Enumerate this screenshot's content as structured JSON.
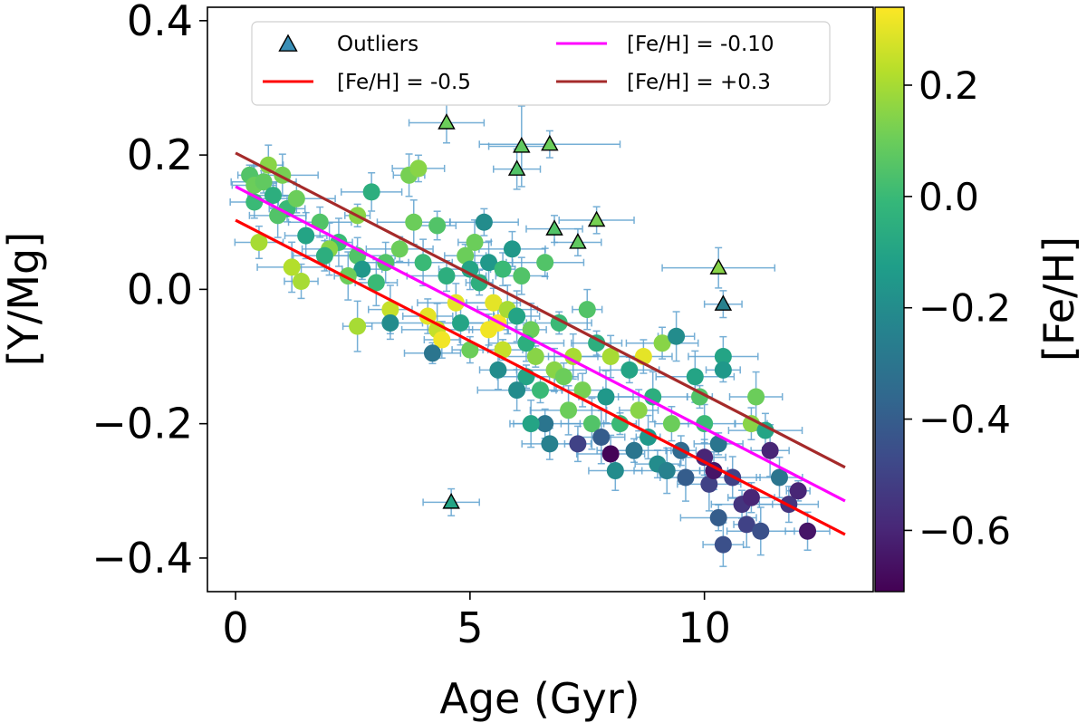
{
  "chart_data": {
    "type": "scatter",
    "title": "",
    "xlabel": "Age (Gyr)",
    "ylabel": "[Y/Mg]",
    "xlim": [
      -0.6,
      13.6
    ],
    "ylim": [
      -0.45,
      0.42
    ],
    "xticks": [
      0,
      5,
      10
    ],
    "xtick_labels": [
      "0",
      "5",
      "10"
    ],
    "yticks": [
      -0.4,
      -0.2,
      0.0,
      0.2,
      0.4
    ],
    "ytick_labels": [
      "−0.4",
      "−0.2",
      "0.0",
      "0.2",
      "0.4"
    ],
    "grid": false,
    "legend_position": "top",
    "colorbar": {
      "label": "[Fe/H]",
      "range": [
        -0.71,
        0.34
      ],
      "ticks": [
        -0.6,
        -0.4,
        -0.2,
        0.0,
        0.2
      ],
      "tick_labels": [
        "−0.6",
        "−0.4",
        "−0.2",
        "0.0",
        "0.2"
      ],
      "colormap": "viridis",
      "colors": [
        "#440154",
        "#482878",
        "#3e4989",
        "#31688e",
        "#26828e",
        "#1f9e89",
        "#35b779",
        "#6ece58",
        "#b5de2b",
        "#fde725"
      ]
    },
    "legend": [
      {
        "label": "Outliers",
        "marker": "triangle",
        "color": "#3a8fb7"
      },
      {
        "label": "[Fe/H] = -0.10",
        "marker": "line",
        "color": "#ff00ff"
      },
      {
        "label": "[Fe/H] = -0.5",
        "marker": "line",
        "color": "#ff0000"
      },
      {
        "label": "[Fe/H] = +0.3",
        "marker": "line",
        "color": "#a52a2a"
      }
    ],
    "lines": [
      {
        "name": "[Fe/H] = -0.5",
        "color": "#ff0000",
        "x": [
          0,
          13
        ],
        "y": [
          0.103,
          -0.365
        ]
      },
      {
        "name": "[Fe/H] = -0.10",
        "color": "#ff00ff",
        "x": [
          0,
          13
        ],
        "y": [
          0.153,
          -0.315
        ]
      },
      {
        "name": "[Fe/H] = +0.3",
        "color": "#a52a2a",
        "x": [
          0,
          13
        ],
        "y": [
          0.203,
          -0.265
        ]
      }
    ],
    "outliers": [
      {
        "x": 4.5,
        "y": 0.248,
        "feh": 0.1,
        "xerr": 0.8,
        "yerr": 0.03
      },
      {
        "x": 6.1,
        "y": 0.213,
        "feh": 0.08,
        "xerr": 0.7,
        "yerr": 0.06
      },
      {
        "x": 6.7,
        "y": 0.216,
        "feh": 0.1,
        "xerr": 1.5,
        "yerr": 0.02
      },
      {
        "x": 6.0,
        "y": 0.179,
        "feh": 0.05,
        "xerr": 0.5,
        "yerr": 0.03
      },
      {
        "x": 6.8,
        "y": 0.09,
        "feh": 0.05,
        "xerr": 0.6,
        "yerr": 0.02
      },
      {
        "x": 7.7,
        "y": 0.103,
        "feh": 0.12,
        "xerr": 0.8,
        "yerr": 0.02
      },
      {
        "x": 7.3,
        "y": 0.07,
        "feh": 0.08,
        "xerr": 0.5,
        "yerr": 0.02
      },
      {
        "x": 10.3,
        "y": 0.032,
        "feh": 0.15,
        "xerr": 1.2,
        "yerr": 0.03
      },
      {
        "x": 10.4,
        "y": -0.022,
        "feh": -0.25,
        "xerr": 0.4,
        "yerr": 0.02
      },
      {
        "x": 4.6,
        "y": -0.317,
        "feh": -0.1,
        "xerr": 0.6,
        "yerr": 0.02
      }
    ],
    "points": [
      {
        "x": 0.3,
        "y": 0.17,
        "feh": 0.05
      },
      {
        "x": 0.4,
        "y": 0.155,
        "feh": 0.1
      },
      {
        "x": 0.6,
        "y": 0.16,
        "feh": 0.08
      },
      {
        "x": 0.7,
        "y": 0.185,
        "feh": 0.15
      },
      {
        "x": 0.8,
        "y": 0.14,
        "feh": -0.05
      },
      {
        "x": 1.0,
        "y": 0.17,
        "feh": 0.12
      },
      {
        "x": 1.1,
        "y": 0.12,
        "feh": 0.0
      },
      {
        "x": 0.9,
        "y": 0.11,
        "feh": 0.05
      },
      {
        "x": 1.3,
        "y": 0.135,
        "feh": 0.1
      },
      {
        "x": 1.5,
        "y": 0.08,
        "feh": -0.1
      },
      {
        "x": 1.8,
        "y": 0.1,
        "feh": 0.05
      },
      {
        "x": 2.2,
        "y": 0.07,
        "feh": 0.0
      },
      {
        "x": 0.5,
        "y": 0.07,
        "feh": 0.2
      },
      {
        "x": 1.2,
        "y": 0.033,
        "feh": 0.22
      },
      {
        "x": 1.4,
        "y": 0.012,
        "feh": 0.2
      },
      {
        "x": 2.0,
        "y": 0.06,
        "feh": 0.15
      },
      {
        "x": 2.6,
        "y": 0.05,
        "feh": 0.05
      },
      {
        "x": 2.7,
        "y": 0.03,
        "feh": -0.15
      },
      {
        "x": 2.9,
        "y": 0.145,
        "feh": -0.05
      },
      {
        "x": 2.6,
        "y": 0.11,
        "feh": 0.15
      },
      {
        "x": 3.2,
        "y": 0.04,
        "feh": 0.05
      },
      {
        "x": 3.5,
        "y": 0.06,
        "feh": 0.1
      },
      {
        "x": 3.7,
        "y": 0.17,
        "feh": 0.12
      },
      {
        "x": 3.9,
        "y": 0.18,
        "feh": 0.15
      },
      {
        "x": 3.8,
        "y": 0.1,
        "feh": 0.1
      },
      {
        "x": 4.3,
        "y": 0.095,
        "feh": 0.05
      },
      {
        "x": 4.0,
        "y": 0.04,
        "feh": 0.0
      },
      {
        "x": 4.5,
        "y": 0.02,
        "feh": -0.05
      },
      {
        "x": 3.3,
        "y": -0.03,
        "feh": 0.25
      },
      {
        "x": 3.3,
        "y": -0.05,
        "feh": -0.2
      },
      {
        "x": 2.6,
        "y": -0.055,
        "feh": 0.2
      },
      {
        "x": 4.1,
        "y": -0.04,
        "feh": 0.3
      },
      {
        "x": 4.3,
        "y": -0.06,
        "feh": 0.25
      },
      {
        "x": 4.4,
        "y": -0.075,
        "feh": 0.32
      },
      {
        "x": 4.2,
        "y": -0.095,
        "feh": -0.3
      },
      {
        "x": 4.7,
        "y": -0.02,
        "feh": 0.3
      },
      {
        "x": 4.9,
        "y": 0.05,
        "feh": 0.1
      },
      {
        "x": 5.0,
        "y": 0.03,
        "feh": -0.1
      },
      {
        "x": 5.2,
        "y": 0.01,
        "feh": -0.05
      },
      {
        "x": 5.4,
        "y": 0.04,
        "feh": -0.15
      },
      {
        "x": 5.3,
        "y": 0.1,
        "feh": -0.2
      },
      {
        "x": 5.1,
        "y": 0.07,
        "feh": 0.1
      },
      {
        "x": 5.5,
        "y": -0.02,
        "feh": 0.3
      },
      {
        "x": 5.6,
        "y": -0.05,
        "feh": 0.33
      },
      {
        "x": 5.4,
        "y": -0.06,
        "feh": 0.32
      },
      {
        "x": 5.8,
        "y": -0.03,
        "feh": 0.2
      },
      {
        "x": 5.7,
        "y": 0.03,
        "feh": 0.0
      },
      {
        "x": 6.0,
        "y": -0.04,
        "feh": -0.1
      },
      {
        "x": 5.9,
        "y": 0.06,
        "feh": -0.15
      },
      {
        "x": 6.3,
        "y": -0.06,
        "feh": 0.1
      },
      {
        "x": 6.1,
        "y": 0.02,
        "feh": 0.05
      },
      {
        "x": 6.4,
        "y": -0.1,
        "feh": 0.15
      },
      {
        "x": 5.6,
        "y": -0.12,
        "feh": -0.2
      },
      {
        "x": 6.2,
        "y": -0.13,
        "feh": -0.1
      },
      {
        "x": 6.0,
        "y": -0.15,
        "feh": -0.2
      },
      {
        "x": 6.5,
        "y": -0.15,
        "feh": 0.0
      },
      {
        "x": 6.8,
        "y": -0.12,
        "feh": 0.15
      },
      {
        "x": 7.0,
        "y": -0.13,
        "feh": 0.1
      },
      {
        "x": 7.2,
        "y": -0.1,
        "feh": 0.2
      },
      {
        "x": 6.6,
        "y": -0.2,
        "feh": -0.3
      },
      {
        "x": 6.3,
        "y": -0.2,
        "feh": -0.1
      },
      {
        "x": 6.7,
        "y": -0.23,
        "feh": -0.25
      },
      {
        "x": 7.1,
        "y": -0.18,
        "feh": 0.1
      },
      {
        "x": 7.4,
        "y": -0.15,
        "feh": 0.12
      },
      {
        "x": 7.6,
        "y": -0.2,
        "feh": 0.05
      },
      {
        "x": 7.3,
        "y": -0.23,
        "feh": -0.5
      },
      {
        "x": 7.8,
        "y": -0.22,
        "feh": -0.4
      },
      {
        "x": 8.0,
        "y": -0.245,
        "feh": -0.7
      },
      {
        "x": 8.2,
        "y": -0.2,
        "feh": 0.0
      },
      {
        "x": 8.1,
        "y": -0.27,
        "feh": -0.2
      },
      {
        "x": 8.5,
        "y": -0.24,
        "feh": -0.3
      },
      {
        "x": 8.6,
        "y": -0.18,
        "feh": 0.15
      },
      {
        "x": 8.4,
        "y": -0.12,
        "feh": -0.1
      },
      {
        "x": 8.8,
        "y": -0.22,
        "feh": -0.15
      },
      {
        "x": 9.0,
        "y": -0.26,
        "feh": -0.2
      },
      {
        "x": 9.2,
        "y": -0.27,
        "feh": -0.25
      },
      {
        "x": 9.5,
        "y": -0.24,
        "feh": -0.35
      },
      {
        "x": 9.6,
        "y": -0.28,
        "feh": -0.4
      },
      {
        "x": 9.1,
        "y": -0.08,
        "feh": 0.15
      },
      {
        "x": 9.4,
        "y": -0.07,
        "feh": -0.2
      },
      {
        "x": 8.7,
        "y": -0.1,
        "feh": 0.3
      },
      {
        "x": 9.8,
        "y": -0.13,
        "feh": -0.1
      },
      {
        "x": 10.0,
        "y": -0.25,
        "feh": -0.6
      },
      {
        "x": 10.1,
        "y": -0.29,
        "feh": -0.5
      },
      {
        "x": 10.2,
        "y": -0.27,
        "feh": -0.65
      },
      {
        "x": 10.3,
        "y": -0.23,
        "feh": -0.3
      },
      {
        "x": 10.4,
        "y": -0.1,
        "feh": -0.1
      },
      {
        "x": 10.4,
        "y": -0.12,
        "feh": -0.15
      },
      {
        "x": 10.6,
        "y": -0.28,
        "feh": -0.5
      },
      {
        "x": 10.3,
        "y": -0.34,
        "feh": -0.4
      },
      {
        "x": 10.4,
        "y": -0.38,
        "feh": -0.45
      },
      {
        "x": 10.8,
        "y": -0.32,
        "feh": -0.55
      },
      {
        "x": 10.9,
        "y": -0.35,
        "feh": -0.5
      },
      {
        "x": 11.0,
        "y": -0.31,
        "feh": -0.6
      },
      {
        "x": 11.2,
        "y": -0.36,
        "feh": -0.45
      },
      {
        "x": 11.0,
        "y": -0.2,
        "feh": 0.15
      },
      {
        "x": 11.1,
        "y": -0.16,
        "feh": 0.1
      },
      {
        "x": 11.3,
        "y": -0.21,
        "feh": -0.1
      },
      {
        "x": 11.4,
        "y": -0.24,
        "feh": -0.6
      },
      {
        "x": 11.8,
        "y": -0.32,
        "feh": -0.55
      },
      {
        "x": 12.0,
        "y": -0.3,
        "feh": -0.6
      },
      {
        "x": 12.2,
        "y": -0.36,
        "feh": -0.65
      },
      {
        "x": 6.9,
        "y": -0.05,
        "feh": 0.0
      },
      {
        "x": 7.5,
        "y": -0.03,
        "feh": 0.05
      },
      {
        "x": 7.7,
        "y": -0.08,
        "feh": -0.05
      },
      {
        "x": 8.0,
        "y": -0.1,
        "feh": 0.2
      },
      {
        "x": 5.0,
        "y": -0.09,
        "feh": 0.1
      },
      {
        "x": 4.8,
        "y": -0.05,
        "feh": -0.1
      },
      {
        "x": 6.6,
        "y": 0.04,
        "feh": 0.05
      },
      {
        "x": 3.0,
        "y": 0.01,
        "feh": 0.0
      },
      {
        "x": 1.9,
        "y": 0.05,
        "feh": -0.05
      },
      {
        "x": 2.4,
        "y": 0.02,
        "feh": 0.1
      },
      {
        "x": 0.4,
        "y": 0.13,
        "feh": 0.0
      },
      {
        "x": 8.9,
        "y": -0.16,
        "feh": -0.05
      },
      {
        "x": 9.3,
        "y": -0.2,
        "feh": 0.1
      },
      {
        "x": 7.9,
        "y": -0.16,
        "feh": -0.15
      },
      {
        "x": 6.2,
        "y": -0.08,
        "feh": -0.05
      },
      {
        "x": 5.7,
        "y": -0.09,
        "feh": 0.25
      },
      {
        "x": 10.0,
        "y": -0.2,
        "feh": 0.0
      },
      {
        "x": 9.9,
        "y": -0.16,
        "feh": 0.05
      },
      {
        "x": 11.6,
        "y": -0.28,
        "feh": -0.3
      }
    ]
  }
}
